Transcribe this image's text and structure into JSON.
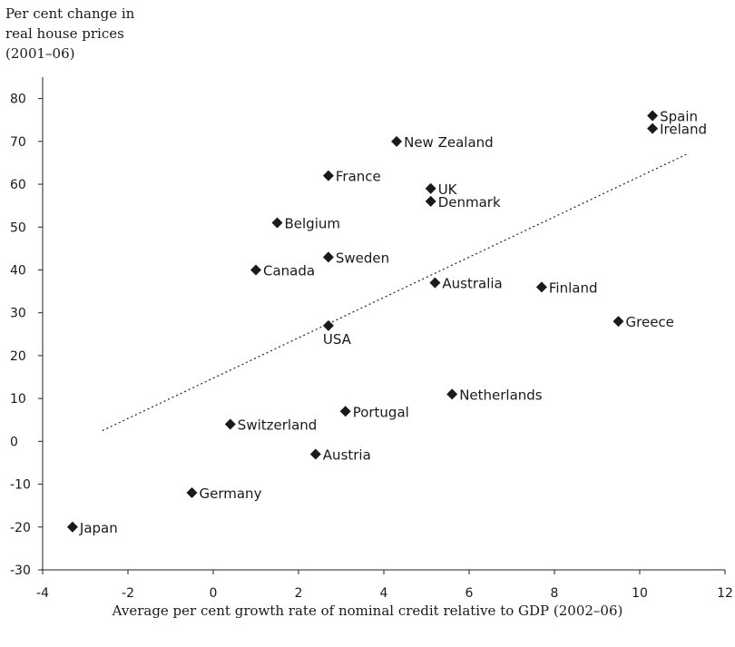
{
  "chart_data": {
    "type": "scatter",
    "ylabel_lines": [
      "Per cent change in",
      "real house prices",
      "(2001–06)"
    ],
    "xlabel": "Average per cent growth rate of nominal credit relative to GDP (2002–06)",
    "xlim": [
      -4,
      12
    ],
    "ylim": [
      -30,
      85
    ],
    "xticks": [
      -4,
      -2,
      0,
      2,
      4,
      6,
      8,
      10,
      12
    ],
    "yticks": [
      -30,
      -20,
      -10,
      0,
      10,
      20,
      30,
      40,
      50,
      60,
      70,
      80
    ],
    "grid": false,
    "points": [
      {
        "label": "Spain",
        "x": 10.3,
        "y": 76,
        "label_side": "right"
      },
      {
        "label": "Ireland",
        "x": 10.3,
        "y": 73,
        "label_side": "right"
      },
      {
        "label": "New Zealand",
        "x": 4.3,
        "y": 70,
        "label_side": "right"
      },
      {
        "label": "France",
        "x": 2.7,
        "y": 62,
        "label_side": "right"
      },
      {
        "label": "UK",
        "x": 5.1,
        "y": 59,
        "label_side": "right"
      },
      {
        "label": "Denmark",
        "x": 5.1,
        "y": 56,
        "label_side": "right"
      },
      {
        "label": "Belgium",
        "x": 1.5,
        "y": 51,
        "label_side": "right"
      },
      {
        "label": "Sweden",
        "x": 2.7,
        "y": 43,
        "label_side": "right"
      },
      {
        "label": "Canada",
        "x": 1.0,
        "y": 40,
        "label_side": "right"
      },
      {
        "label": "Australia",
        "x": 5.2,
        "y": 37,
        "label_side": "right"
      },
      {
        "label": "Finland",
        "x": 7.7,
        "y": 36,
        "label_side": "right"
      },
      {
        "label": "Greece",
        "x": 9.5,
        "y": 28,
        "label_side": "right"
      },
      {
        "label": "USA",
        "x": 2.7,
        "y": 27,
        "label_side": "below"
      },
      {
        "label": "Netherlands",
        "x": 5.6,
        "y": 11,
        "label_side": "right"
      },
      {
        "label": "Portugal",
        "x": 3.1,
        "y": 7,
        "label_side": "right"
      },
      {
        "label": "Switzerland",
        "x": 0.4,
        "y": 4,
        "label_side": "right"
      },
      {
        "label": "Austria",
        "x": 2.4,
        "y": -3,
        "label_side": "right"
      },
      {
        "label": "Germany",
        "x": -0.5,
        "y": -12,
        "label_side": "right"
      },
      {
        "label": "Japan",
        "x": -3.3,
        "y": -20,
        "label_side": "right"
      }
    ],
    "trendline": {
      "style": "dotted",
      "x": [
        -2.6,
        11.1
      ],
      "y": [
        2.5,
        67
      ]
    }
  }
}
